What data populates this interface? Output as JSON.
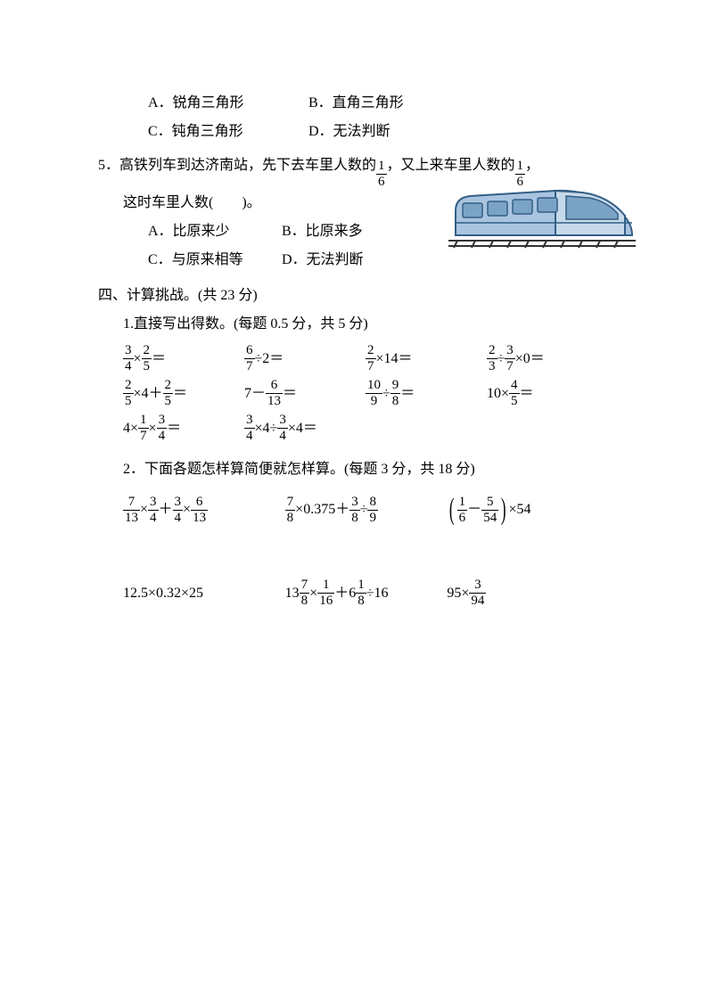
{
  "choices4": {
    "A": "A．锐角三角形",
    "B": "B．直角三角形",
    "C": "C．钝角三角形",
    "D": "D．无法判断"
  },
  "q5": {
    "stem_prefix": "5．高铁列车到达济南站，先下去车里人数的",
    "frac1": {
      "num": "1",
      "den": "6"
    },
    "stem_mid": "，又上来车里人数的",
    "frac2": {
      "num": "1",
      "den": "6"
    },
    "stem_suffix": "，",
    "line2": "这时车里人数(　　)。",
    "A": "A．比原来少",
    "B": "B．比原来多",
    "C": "C．与原来相等",
    "D": "D．无法判断"
  },
  "sec4": {
    "title": "四、计算挑战。(共 23 分)",
    "sub1": {
      "title": "1.直接写出得数。(每题 0.5 分，共 5 分)",
      "rows": [
        [
          {
            "parts": [
              {
                "frac": {
                  "n": "3",
                  "d": "4"
                }
              },
              {
                "t": "×"
              },
              {
                "frac": {
                  "n": "2",
                  "d": "5"
                }
              },
              {
                "t": "＝"
              }
            ]
          },
          {
            "parts": [
              {
                "frac": {
                  "n": "6",
                  "d": "7"
                }
              },
              {
                "t": "÷2＝"
              }
            ]
          },
          {
            "parts": [
              {
                "frac": {
                  "n": "2",
                  "d": "7"
                }
              },
              {
                "t": "×14＝"
              }
            ]
          },
          {
            "parts": [
              {
                "frac": {
                  "n": "2",
                  "d": "3"
                }
              },
              {
                "t": "÷"
              },
              {
                "frac": {
                  "n": "3",
                  "d": "7"
                }
              },
              {
                "t": "×0＝"
              }
            ]
          }
        ],
        [
          {
            "parts": [
              {
                "frac": {
                  "n": "2",
                  "d": "5"
                }
              },
              {
                "t": "×4＋"
              },
              {
                "frac": {
                  "n": "2",
                  "d": "5"
                }
              },
              {
                "t": "＝"
              }
            ]
          },
          {
            "parts": [
              {
                "t": "7－"
              },
              {
                "frac": {
                  "n": "6",
                  "d": "13"
                }
              },
              {
                "t": "＝"
              }
            ]
          },
          {
            "parts": [
              {
                "frac": {
                  "n": "10",
                  "d": "9"
                }
              },
              {
                "t": "÷"
              },
              {
                "frac": {
                  "n": "9",
                  "d": "8"
                }
              },
              {
                "t": "＝"
              }
            ]
          },
          {
            "parts": [
              {
                "t": "10×"
              },
              {
                "frac": {
                  "n": "4",
                  "d": "5"
                }
              },
              {
                "t": "＝"
              }
            ]
          }
        ],
        [
          {
            "parts": [
              {
                "t": "4×"
              },
              {
                "frac": {
                  "n": "1",
                  "d": "7"
                }
              },
              {
                "t": "×"
              },
              {
                "frac": {
                  "n": "3",
                  "d": "4"
                }
              },
              {
                "t": "＝"
              }
            ]
          },
          {
            "parts": [
              {
                "frac": {
                  "n": "3",
                  "d": "4"
                }
              },
              {
                "t": "×4÷"
              },
              {
                "frac": {
                  "n": "3",
                  "d": "4"
                }
              },
              {
                "t": "×4＝"
              }
            ]
          }
        ]
      ]
    },
    "sub2": {
      "title": "2．下面各题怎样算简便就怎样算。(每题 3 分，共 18 分)",
      "rows": [
        [
          {
            "parts": [
              {
                "frac": {
                  "n": "7",
                  "d": "13"
                }
              },
              {
                "t": "×"
              },
              {
                "frac": {
                  "n": "3",
                  "d": "4"
                }
              },
              {
                "t": "＋"
              },
              {
                "frac": {
                  "n": "3",
                  "d": "4"
                }
              },
              {
                "t": "×"
              },
              {
                "frac": {
                  "n": "6",
                  "d": "13"
                }
              }
            ]
          },
          {
            "parts": [
              {
                "frac": {
                  "n": "7",
                  "d": "8"
                }
              },
              {
                "t": "×0.375＋"
              },
              {
                "frac": {
                  "n": "3",
                  "d": "8"
                }
              },
              {
                "t": "÷"
              },
              {
                "frac": {
                  "n": "8",
                  "d": "9"
                }
              }
            ]
          },
          {
            "bracket": true,
            "inner": [
              {
                "frac": {
                  "n": "1",
                  "d": "6"
                }
              },
              {
                "t": "－"
              },
              {
                "frac": {
                  "n": "5",
                  "d": "54"
                }
              }
            ],
            "after": "×54"
          }
        ],
        [
          {
            "parts": [
              {
                "t": "12.5×0.32×25"
              }
            ]
          },
          {
            "parts": [
              {
                "t": "13"
              },
              {
                "frac": {
                  "n": "7",
                  "d": "8"
                }
              },
              {
                "t": "×"
              },
              {
                "frac": {
                  "n": "1",
                  "d": "16"
                }
              },
              {
                "t": "＋6"
              },
              {
                "frac": {
                  "n": "1",
                  "d": "8"
                }
              },
              {
                "t": "÷16"
              }
            ]
          },
          {
            "parts": [
              {
                "t": "95×"
              },
              {
                "frac": {
                  "n": "3",
                  "d": "94"
                }
              }
            ]
          }
        ]
      ]
    }
  },
  "colors": {
    "text": "#000000",
    "background": "#ffffff",
    "train_body": "#a9c4e0",
    "train_outline": "#335e84",
    "train_window": "#7aa3c6",
    "train_track": "#333333"
  }
}
